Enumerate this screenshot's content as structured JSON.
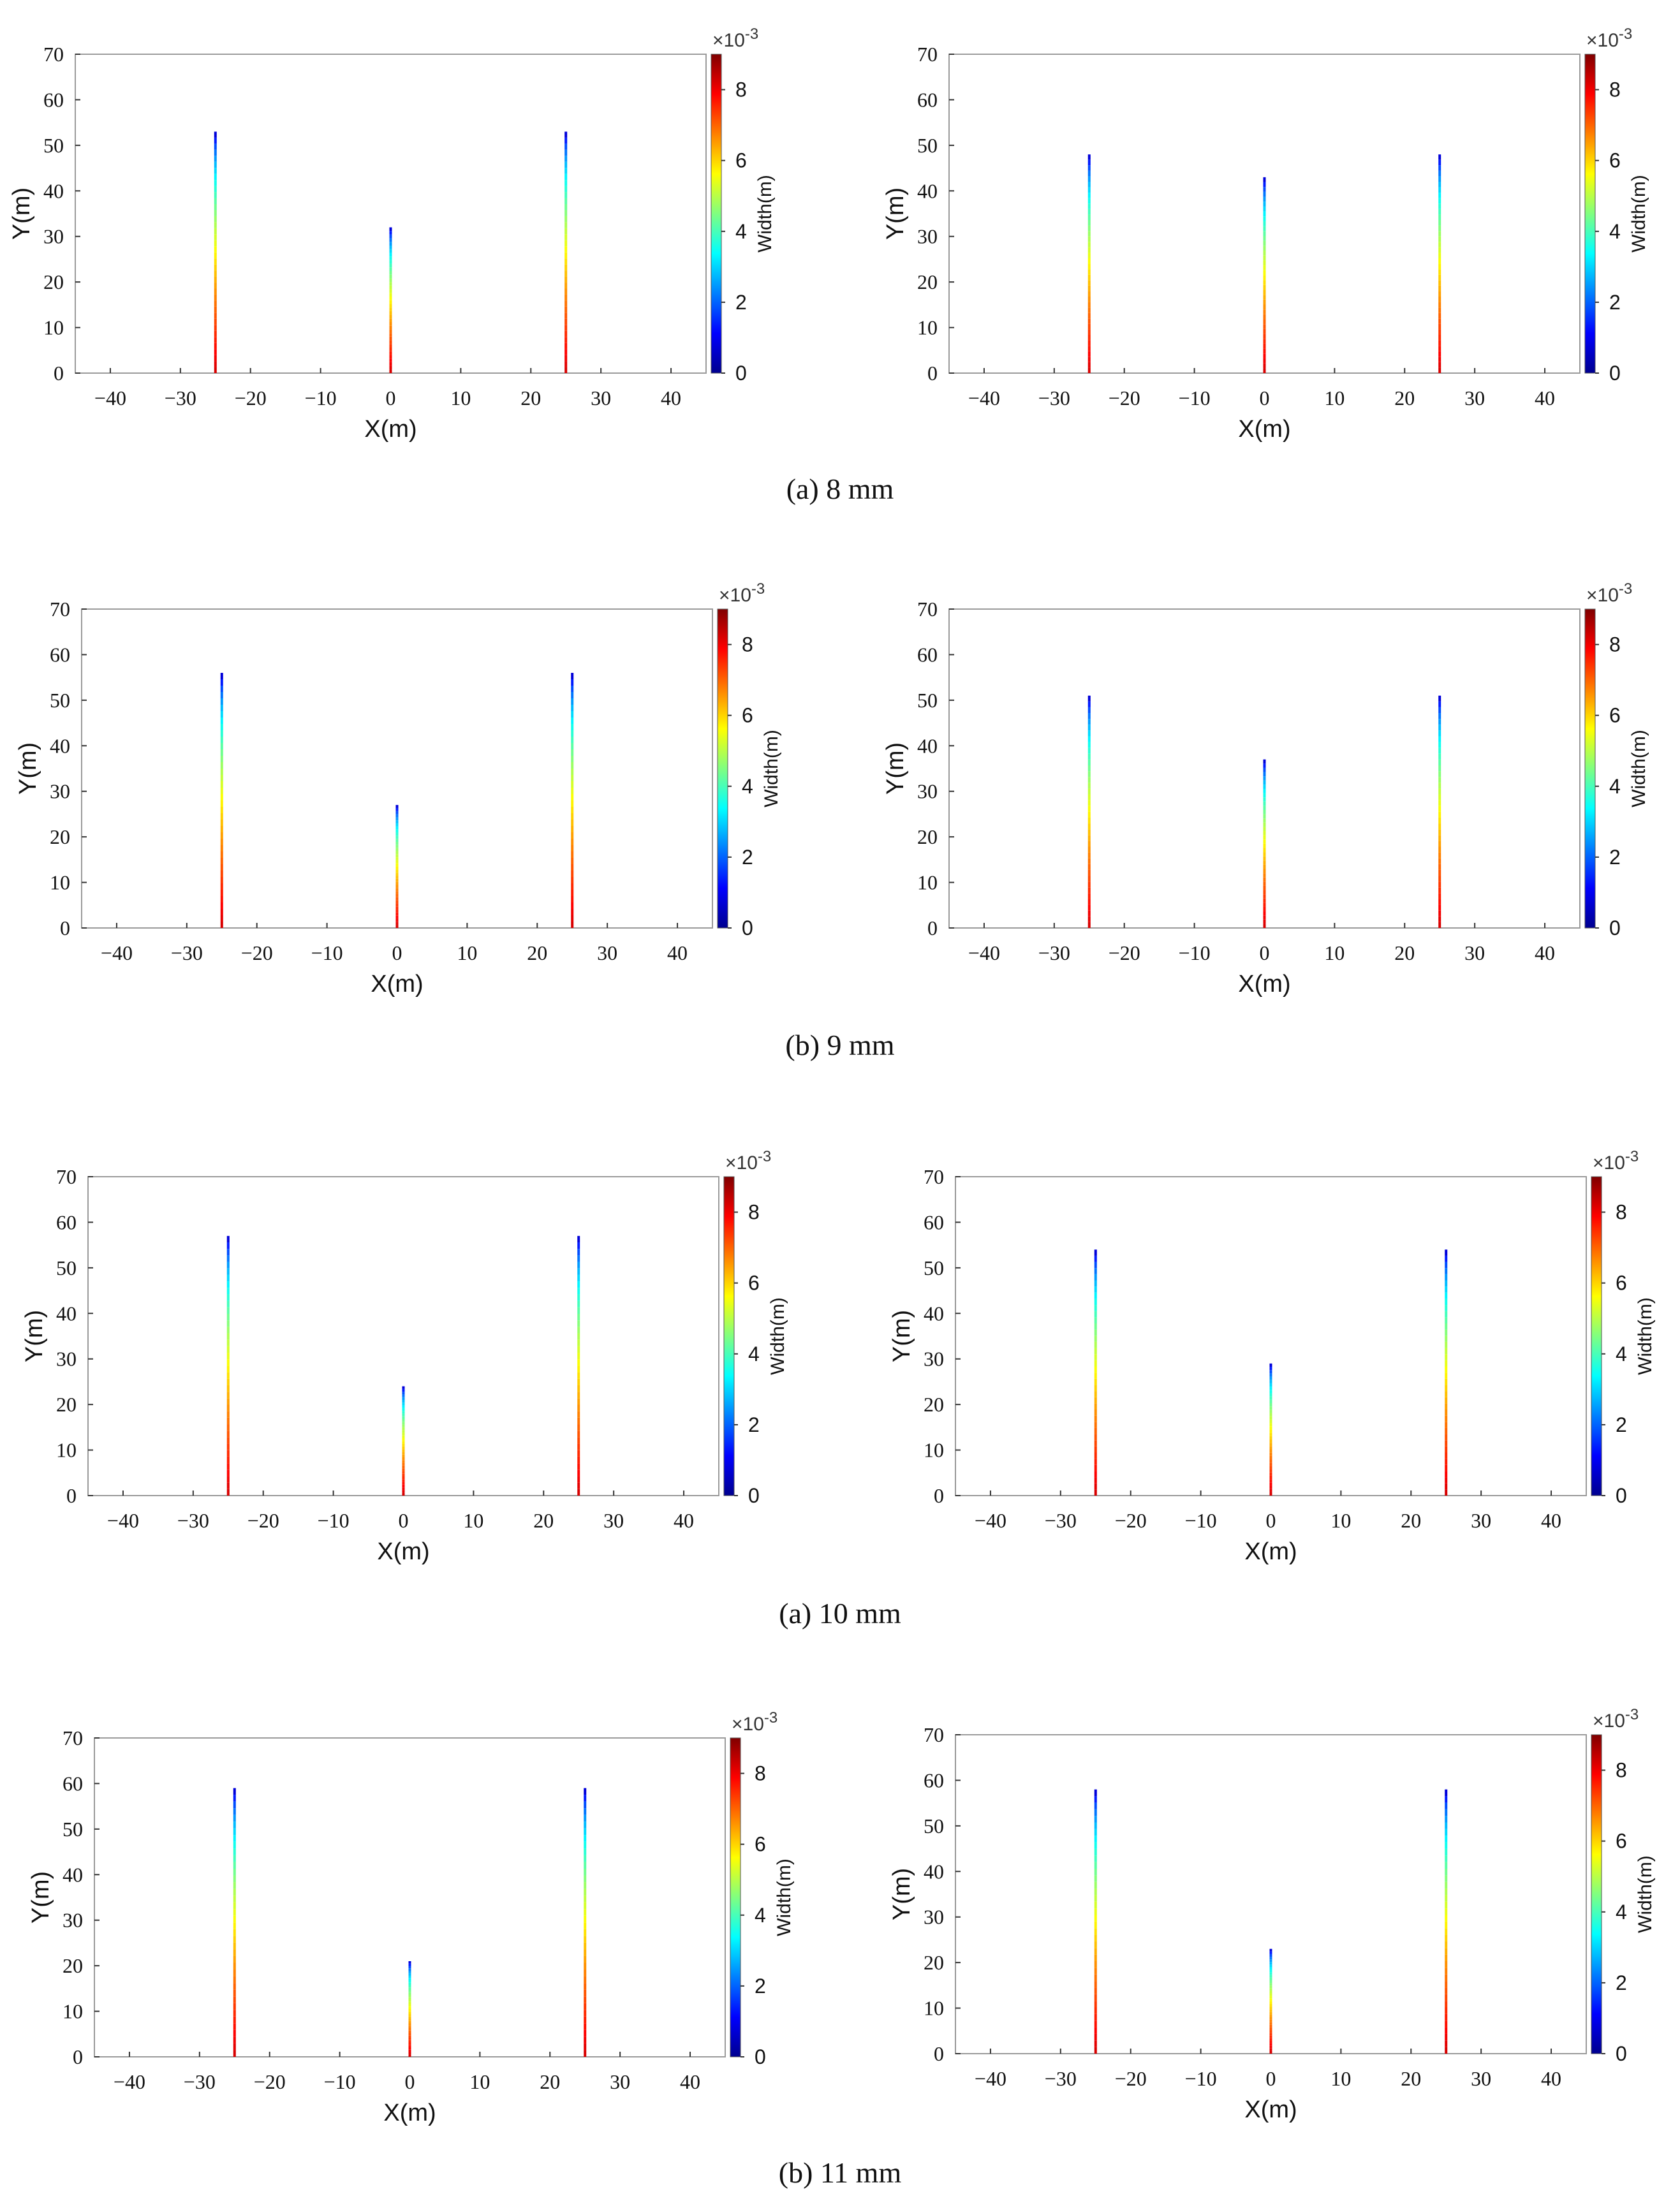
{
  "figure": {
    "colorbar": {
      "label": "Width(m)",
      "multiplier": "×10",
      "exponent": "-3",
      "min": 0,
      "max": 9,
      "ticks": [
        "0",
        "2",
        "4",
        "6",
        "8"
      ]
    },
    "rows": [
      {
        "caption": "(a) 8 mm",
        "panels": [
          {
            "x_axis": {
              "label": "X(m)",
              "ticks": [
                "−40",
                "−30",
                "−20",
                "−10",
                "0",
                "10",
                "20",
                "30",
                "40"
              ]
            },
            "y_axis": {
              "label": "Y(m)",
              "ticks": [
                "0",
                "10",
                "20",
                "30",
                "40",
                "50",
                "60",
                "70"
              ]
            }
          },
          {
            "x_axis": {
              "label": "X(m)",
              "ticks": [
                "−40",
                "−30",
                "−20",
                "−10",
                "0",
                "10",
                "20",
                "30",
                "40"
              ]
            },
            "y_axis": {
              "label": "Y(m)",
              "ticks": [
                "0",
                "10",
                "20",
                "30",
                "40",
                "50",
                "60",
                "70"
              ]
            }
          }
        ]
      },
      {
        "caption": "(b) 9 mm",
        "panels": [
          {
            "x_axis": {
              "label": "X(m)",
              "ticks": [
                "−40",
                "−30",
                "−20",
                "−10",
                "0",
                "10",
                "20",
                "30",
                "40"
              ]
            },
            "y_axis": {
              "label": "Y(m)",
              "ticks": [
                "0",
                "10",
                "20",
                "30",
                "40",
                "50",
                "60",
                "70"
              ]
            }
          },
          {
            "x_axis": {
              "label": "X(m)",
              "ticks": [
                "−40",
                "−30",
                "−20",
                "−10",
                "0",
                "10",
                "20",
                "30",
                "40"
              ]
            },
            "y_axis": {
              "label": "Y(m)",
              "ticks": [
                "0",
                "10",
                "20",
                "30",
                "40",
                "50",
                "60",
                "70"
              ]
            }
          }
        ]
      },
      {
        "caption": "(a) 10 mm",
        "panels": [
          {
            "x_axis": {
              "label": "X(m)",
              "ticks": [
                "−40",
                "−30",
                "−20",
                "−10",
                "0",
                "10",
                "20",
                "30",
                "40"
              ]
            },
            "y_axis": {
              "label": "Y(m)",
              "ticks": [
                "0",
                "10",
                "20",
                "30",
                "40",
                "50",
                "60",
                "70"
              ]
            }
          },
          {
            "x_axis": {
              "label": "X(m)",
              "ticks": [
                "−40",
                "−30",
                "−20",
                "−10",
                "0",
                "10",
                "20",
                "30",
                "40"
              ]
            },
            "y_axis": {
              "label": "Y(m)",
              "ticks": [
                "0",
                "10",
                "20",
                "30",
                "40",
                "50",
                "60",
                "70"
              ]
            }
          }
        ]
      },
      {
        "caption": "(b) 11 mm",
        "panels": [
          {
            "x_axis": {
              "label": "X(m)",
              "ticks": [
                "−40",
                "−30",
                "−20",
                "−10",
                "0",
                "10",
                "20",
                "30",
                "40"
              ]
            },
            "y_axis": {
              "label": "Y(m)",
              "ticks": [
                "0",
                "10",
                "20",
                "30",
                "40",
                "50",
                "60",
                "70"
              ]
            }
          },
          {
            "x_axis": {
              "label": "X(m)",
              "ticks": [
                "−40",
                "−30",
                "−20",
                "−10",
                "0",
                "10",
                "20",
                "30",
                "40"
              ]
            },
            "y_axis": {
              "label": "Y(m)",
              "ticks": [
                "0",
                "10",
                "20",
                "30",
                "40",
                "50",
                "60",
                "70"
              ]
            }
          }
        ]
      }
    ]
  },
  "chart_data": [
    {
      "type": "line",
      "title": "(a) 8 mm - left",
      "xlabel": "X(m)",
      "ylabel": "Y(m)",
      "xlim": [
        -45,
        45
      ],
      "ylim": [
        0,
        70
      ],
      "series": [
        {
          "name": "fracture x=-25",
          "x": -25,
          "height": 53
        },
        {
          "name": "fracture x=0",
          "x": 0,
          "height": 32
        },
        {
          "name": "fracture x=25",
          "x": 25,
          "height": 53
        }
      ],
      "colorbar": {
        "label": "Width(m)",
        "scale": "×10^-3",
        "range": [
          0,
          9
        ]
      }
    },
    {
      "type": "line",
      "title": "(a) 8 mm - right",
      "xlabel": "X(m)",
      "ylabel": "Y(m)",
      "xlim": [
        -45,
        45
      ],
      "ylim": [
        0,
        70
      ],
      "series": [
        {
          "name": "fracture x=-25",
          "x": -25,
          "height": 48
        },
        {
          "name": "fracture x=0",
          "x": 0,
          "height": 43
        },
        {
          "name": "fracture x=25",
          "x": 25,
          "height": 48
        }
      ],
      "colorbar": {
        "label": "Width(m)",
        "scale": "×10^-3",
        "range": [
          0,
          9
        ]
      }
    },
    {
      "type": "line",
      "title": "(b) 9 mm - left",
      "xlabel": "X(m)",
      "ylabel": "Y(m)",
      "xlim": [
        -45,
        45
      ],
      "ylim": [
        0,
        70
      ],
      "series": [
        {
          "name": "fracture x=-25",
          "x": -25,
          "height": 56
        },
        {
          "name": "fracture x=0",
          "x": 0,
          "height": 27
        },
        {
          "name": "fracture x=25",
          "x": 25,
          "height": 56
        }
      ],
      "colorbar": {
        "label": "Width(m)",
        "scale": "×10^-3",
        "range": [
          0,
          9
        ]
      }
    },
    {
      "type": "line",
      "title": "(b) 9 mm - right",
      "xlabel": "X(m)",
      "ylabel": "Y(m)",
      "xlim": [
        -45,
        45
      ],
      "ylim": [
        0,
        70
      ],
      "series": [
        {
          "name": "fracture x=-25",
          "x": -25,
          "height": 51
        },
        {
          "name": "fracture x=0",
          "x": 0,
          "height": 37
        },
        {
          "name": "fracture x=25",
          "x": 25,
          "height": 51
        }
      ],
      "colorbar": {
        "label": "Width(m)",
        "scale": "×10^-3",
        "range": [
          0,
          9
        ]
      }
    },
    {
      "type": "line",
      "title": "(a) 10 mm - left",
      "xlabel": "X(m)",
      "ylabel": "Y(m)",
      "xlim": [
        -45,
        45
      ],
      "ylim": [
        0,
        70
      ],
      "series": [
        {
          "name": "fracture x=-25",
          "x": -25,
          "height": 57
        },
        {
          "name": "fracture x=0",
          "x": 0,
          "height": 24
        },
        {
          "name": "fracture x=25",
          "x": 25,
          "height": 57
        }
      ],
      "colorbar": {
        "label": "Width(m)",
        "scale": "×10^-3",
        "range": [
          0,
          9
        ]
      }
    },
    {
      "type": "line",
      "title": "(a) 10 mm - right",
      "xlabel": "X(m)",
      "ylabel": "Y(m)",
      "xlim": [
        -45,
        45
      ],
      "ylim": [
        0,
        70
      ],
      "series": [
        {
          "name": "fracture x=-25",
          "x": -25,
          "height": 54
        },
        {
          "name": "fracture x=0",
          "x": 0,
          "height": 29
        },
        {
          "name": "fracture x=25",
          "x": 25,
          "height": 54
        }
      ],
      "colorbar": {
        "label": "Width(m)",
        "scale": "×10^-3",
        "range": [
          0,
          9
        ]
      }
    },
    {
      "type": "line",
      "title": "(b) 11 mm - left",
      "xlabel": "X(m)",
      "ylabel": "Y(m)",
      "xlim": [
        -45,
        45
      ],
      "ylim": [
        0,
        70
      ],
      "series": [
        {
          "name": "fracture x=-25",
          "x": -25,
          "height": 59
        },
        {
          "name": "fracture x=0",
          "x": 0,
          "height": 21
        },
        {
          "name": "fracture x=25",
          "x": 25,
          "height": 59
        }
      ],
      "colorbar": {
        "label": "Width(m)",
        "scale": "×10^-3",
        "range": [
          0,
          9
        ]
      }
    },
    {
      "type": "line",
      "title": "(b) 11 mm - right",
      "xlabel": "X(m)",
      "ylabel": "Y(m)",
      "xlim": [
        -45,
        45
      ],
      "ylim": [
        0,
        70
      ],
      "series": [
        {
          "name": "fracture x=-25",
          "x": -25,
          "height": 58
        },
        {
          "name": "fracture x=0",
          "x": 0,
          "height": 23
        },
        {
          "name": "fracture x=25",
          "x": 25,
          "height": 58
        }
      ],
      "colorbar": {
        "label": "Width(m)",
        "scale": "×10^-3",
        "range": [
          0,
          9
        ]
      }
    }
  ]
}
